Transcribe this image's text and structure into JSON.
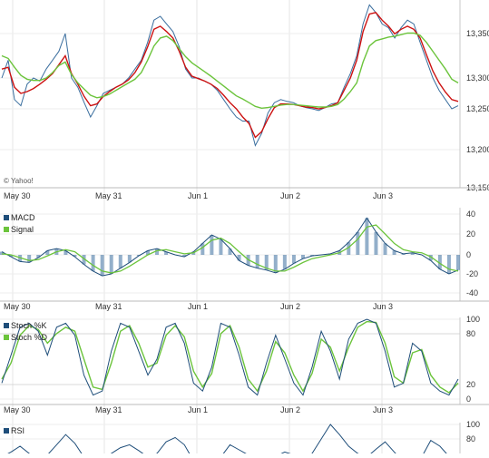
{
  "chart_data": [
    {
      "panel": "price",
      "type": "line",
      "copyright": "© Yahoo!",
      "x_labels": [
        "May 30",
        "May 31",
        "Jun 1",
        "Jun 2",
        "Jun 3"
      ],
      "y_ticks": [
        "13,350",
        "13,300",
        "13,250",
        "13,200",
        "13,150"
      ],
      "y_values": [
        13350,
        13300,
        13250,
        13200,
        13150
      ],
      "ylim": [
        13150,
        13400
      ],
      "grid": true,
      "colors": {
        "price": "#3a6e9e",
        "ma_short": "#cc1111",
        "ma_long": "#6cc43c"
      },
      "series": [
        {
          "key": "price",
          "values": [
            13300,
            13320,
            13265,
            13255,
            13290,
            13300,
            13295,
            13310,
            13320,
            13330,
            13350,
            13300,
            13285,
            13260,
            13240,
            13255,
            13275,
            13280,
            13285,
            13290,
            13300,
            13310,
            13320,
            13340,
            13370,
            13375,
            13365,
            13355,
            13335,
            13310,
            13300,
            13300,
            13295,
            13290,
            13280,
            13265,
            13250,
            13240,
            13235,
            13235,
            13205,
            13220,
            13245,
            13260,
            13265,
            13262,
            13260,
            13255,
            13252,
            13250,
            13248,
            13252,
            13258,
            13260,
            13285,
            13305,
            13325,
            13365,
            13390,
            13380,
            13365,
            13360,
            13345,
            13360,
            13370,
            13365,
            13340,
            13320,
            13300,
            13280,
            13265,
            13250,
            13255
          ]
        },
        {
          "key": "ma_short",
          "values": [
            13310,
            13312,
            13285,
            13275,
            13278,
            13283,
            13290,
            13298,
            13305,
            13315,
            13325,
            13305,
            13290,
            13270,
            13255,
            13258,
            13270,
            13278,
            13285,
            13290,
            13297,
            13306,
            13318,
            13335,
            13358,
            13362,
            13355,
            13345,
            13330,
            13312,
            13302,
            13299,
            13295,
            13290,
            13283,
            13272,
            13260,
            13250,
            13240,
            13232,
            13215,
            13222,
            13238,
            13252,
            13258,
            13258,
            13257,
            13255,
            13253,
            13252,
            13250,
            13252,
            13255,
            13260,
            13280,
            13300,
            13320,
            13355,
            13378,
            13380,
            13370,
            13362,
            13352,
            13358,
            13362,
            13358,
            13345,
            13326,
            13308,
            13292,
            13277,
            13265,
            13262
          ]
        },
        {
          "key": "ma_long",
          "values": [
            13325,
            13322,
            13312,
            13303,
            13298,
            13296,
            13296,
            13300,
            13306,
            13314,
            13318,
            13304,
            13292,
            13282,
            13272,
            13268,
            13270,
            13274,
            13280,
            13286,
            13292,
            13298,
            13306,
            13320,
            13336,
            13345,
            13347,
            13342,
            13333,
            13324,
            13317,
            13312,
            13307,
            13302,
            13295,
            13287,
            13279,
            13271,
            13266,
            13260,
            13254,
            13251,
            13252,
            13254,
            13256,
            13257,
            13257,
            13256,
            13255,
            13254,
            13253,
            13253,
            13254,
            13257,
            13266,
            13278,
            13292,
            13318,
            13336,
            13342,
            13344,
            13346,
            13347,
            13351,
            13353,
            13353,
            13348,
            13340,
            13330,
            13320,
            13310,
            13298,
            13292
          ]
        }
      ]
    },
    {
      "panel": "macd",
      "type": "line",
      "legend": [
        "MACD",
        "Signal"
      ],
      "x_labels": [
        "May 30",
        "May 31",
        "Jun 1",
        "Jun 2",
        "Jun 3"
      ],
      "y_ticks": [
        "40",
        "20",
        "0",
        "-20",
        "-40"
      ],
      "y_values": [
        40,
        20,
        0,
        -20,
        -40
      ],
      "ylim": [
        -40,
        40
      ],
      "grid": true,
      "colors": {
        "macd": "#1f4e7a",
        "signal": "#6cc43c",
        "hist": "#3a6e9e"
      },
      "series": [
        {
          "name": "MACD",
          "values": [
            3,
            -2,
            -7,
            -8,
            -3,
            4,
            6,
            4,
            -2,
            -10,
            -17,
            -22,
            -20,
            -14,
            -8,
            -1,
            4,
            6,
            3,
            0,
            -2,
            3,
            11,
            19,
            15,
            6,
            -6,
            -11,
            -14,
            -16,
            -19,
            -15,
            -9,
            -4,
            -1,
            0,
            1,
            4,
            12,
            22,
            36,
            22,
            11,
            4,
            1,
            2,
            0,
            -6,
            -15,
            -20,
            -16
          ]
        },
        {
          "name": "Signal",
          "values": [
            1,
            0,
            -3,
            -6,
            -5,
            -1,
            3,
            5,
            3,
            -4,
            -11,
            -17,
            -19,
            -17,
            -12,
            -6,
            0,
            4,
            5,
            3,
            1,
            2,
            7,
            14,
            16,
            11,
            3,
            -5,
            -10,
            -14,
            -17,
            -17,
            -13,
            -8,
            -4,
            -2,
            0,
            2,
            7,
            15,
            27,
            29,
            20,
            11,
            5,
            3,
            2,
            -2,
            -9,
            -15,
            -17
          ]
        }
      ]
    },
    {
      "panel": "stochastic",
      "type": "line",
      "legend": [
        "Stoch %K",
        "Stoch %D"
      ],
      "x_labels": [
        "May 30",
        "May 31",
        "Jun 1",
        "Jun 2",
        "Jun 3"
      ],
      "y_ticks": [
        "100",
        "80",
        "20",
        "0"
      ],
      "y_values": [
        100,
        80,
        20,
        0
      ],
      "ylim": [
        0,
        100
      ],
      "grid": true,
      "colors": {
        "k": "#1f4e7a",
        "d": "#6cc43c"
      },
      "series": [
        {
          "name": "Stoch %K",
          "values": [
            20,
            55,
            90,
            95,
            85,
            55,
            90,
            95,
            80,
            30,
            5,
            10,
            60,
            95,
            90,
            60,
            30,
            50,
            90,
            95,
            70,
            20,
            10,
            40,
            95,
            90,
            55,
            15,
            5,
            45,
            80,
            50,
            20,
            5,
            40,
            85,
            60,
            25,
            75,
            95,
            100,
            95,
            60,
            15,
            20,
            70,
            60,
            20,
            10,
            5,
            25
          ]
        },
        {
          "name": "Stoch %D",
          "values": [
            25,
            45,
            80,
            92,
            87,
            70,
            82,
            90,
            85,
            50,
            15,
            12,
            45,
            85,
            92,
            70,
            40,
            45,
            80,
            92,
            78,
            35,
            15,
            32,
            82,
            92,
            65,
            25,
            10,
            35,
            72,
            58,
            30,
            10,
            32,
            75,
            65,
            35,
            65,
            90,
            97,
            96,
            70,
            28,
            20,
            58,
            62,
            30,
            15,
            8,
            20
          ]
        }
      ]
    },
    {
      "panel": "rsi",
      "type": "line",
      "legend": [
        "RSI"
      ],
      "y_ticks": [
        "100",
        "80"
      ],
      "y_values": [
        100,
        80
      ],
      "ylim": [
        0,
        100
      ],
      "colors": {
        "rsi": "#1f4e7a"
      },
      "series": [
        {
          "name": "RSI",
          "values": [
            55,
            62,
            70,
            60,
            48,
            58,
            72,
            86,
            74,
            55,
            45,
            50,
            60,
            68,
            72,
            64,
            55,
            60,
            76,
            82,
            72,
            50,
            38,
            42,
            55,
            72,
            65,
            58,
            50,
            48,
            56,
            62,
            58,
            52,
            60,
            80,
            100,
            86,
            70,
            60,
            55,
            66,
            76,
            62,
            48,
            42,
            55,
            78,
            70,
            56,
            50
          ]
        }
      ]
    }
  ]
}
